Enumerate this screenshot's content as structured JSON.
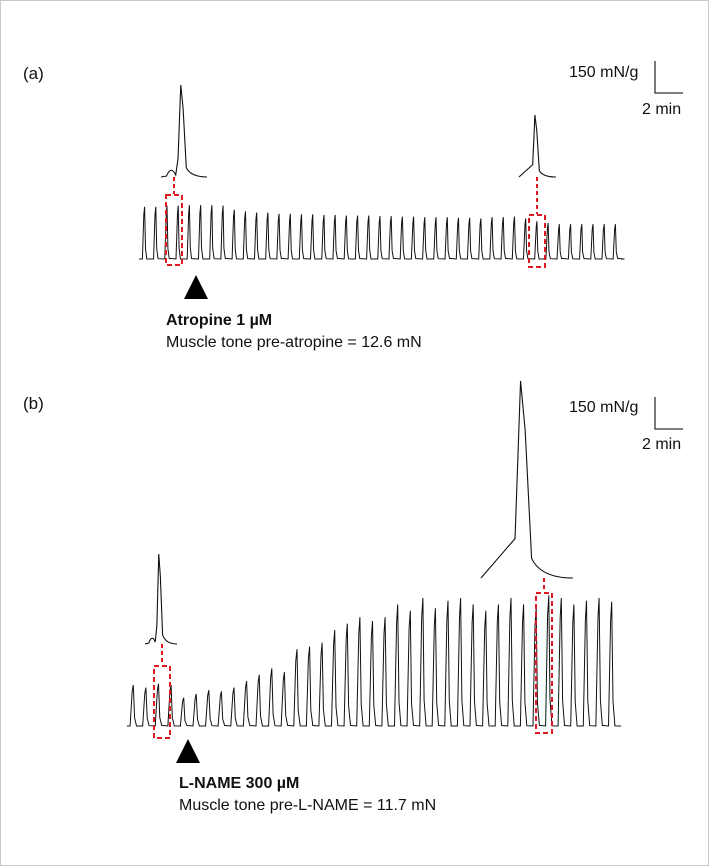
{
  "chart_data": [
    {
      "type": "line",
      "panel_label": "(a)",
      "drug_label": "Atropine 1 µM",
      "tone_label": "Muscle tone pre-atropine = 12.6 mN",
      "scale_bar": {
        "y_label": "150 mN/g",
        "x_label": "2 min"
      },
      "series": [
        {
          "contraction_amplitudes_rel": [
            0.9,
            0.9,
            0.92,
            0.92,
            0.93,
            0.93,
            0.93,
            0.92,
            0.85,
            0.82,
            0.8,
            0.8,
            0.78,
            0.78,
            0.77,
            0.77,
            0.76,
            0.76,
            0.75,
            0.75,
            0.75,
            0.74,
            0.74,
            0.73,
            0.73,
            0.72,
            0.72,
            0.72,
            0.71,
            0.71,
            0.7,
            0.72,
            0.72,
            0.73,
            0.7,
            0.65,
            0.62,
            0.6,
            0.6,
            0.6,
            0.6,
            0.6,
            0.6
          ]
        }
      ],
      "arrow_at_contraction": 4,
      "zoom_at_contractions": [
        3,
        32
      ]
    },
    {
      "type": "line",
      "panel_label": "(b)",
      "drug_label": "L-NAME 300 µM",
      "tone_label": "Muscle tone pre-L-NAME = 11.7 mN",
      "scale_bar": {
        "y_label": "150 mN/g",
        "x_label": "2 min"
      },
      "series": [
        {
          "contraction_amplitudes_rel": [
            0.32,
            0.3,
            0.33,
            0.32,
            0.22,
            0.25,
            0.28,
            0.27,
            0.3,
            0.35,
            0.4,
            0.45,
            0.42,
            0.6,
            0.62,
            0.65,
            0.75,
            0.8,
            0.85,
            0.82,
            0.85,
            0.95,
            0.9,
            1.0,
            0.92,
            0.98,
            1.0,
            0.95,
            0.9,
            0.95,
            1.0,
            0.95,
            0.92,
            1.02,
            1.0,
            0.95,
            0.98,
            1.0,
            0.97
          ]
        }
      ],
      "arrow_at_contraction": 4,
      "zoom_at_contractions": [
        2,
        28
      ]
    }
  ]
}
